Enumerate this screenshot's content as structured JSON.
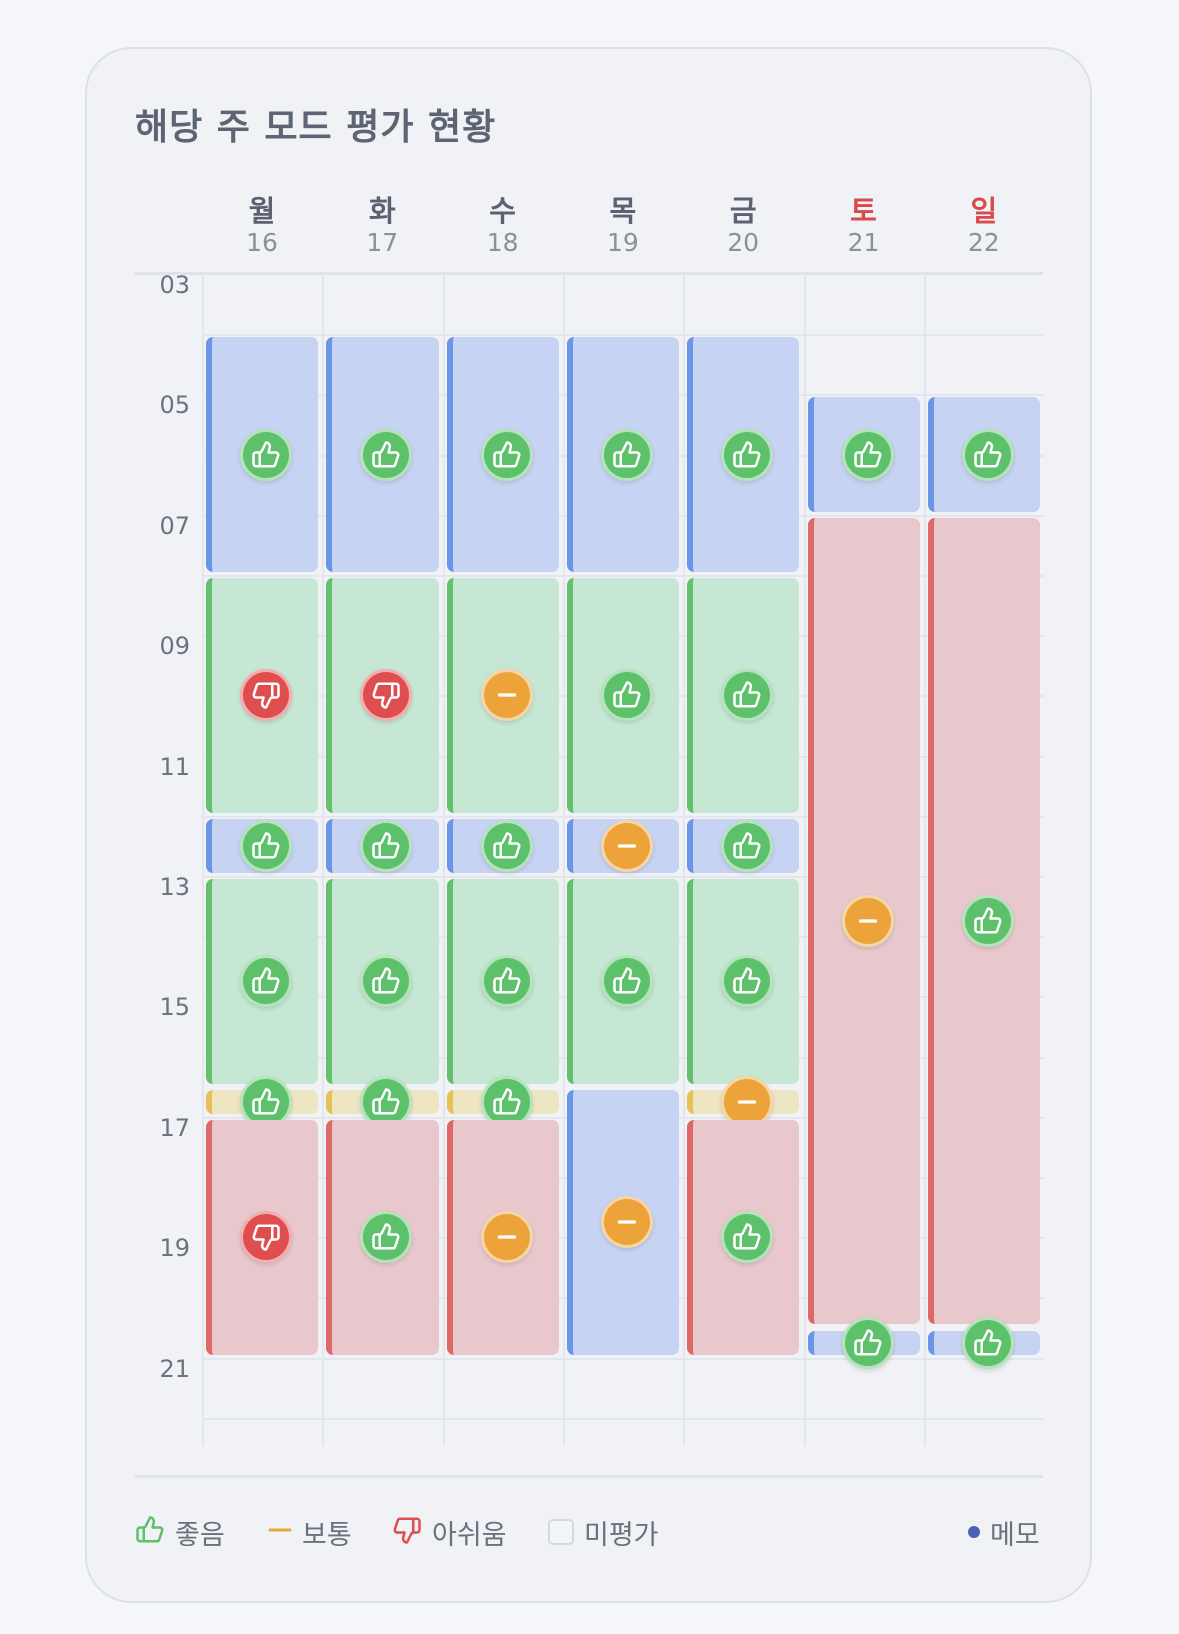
{
  "title": "해당 주 모드 평가 현황",
  "days": [
    {
      "name": "월",
      "date": "16",
      "weekend": false
    },
    {
      "name": "화",
      "date": "17",
      "weekend": false
    },
    {
      "name": "수",
      "date": "18",
      "weekend": false
    },
    {
      "name": "목",
      "date": "19",
      "weekend": false
    },
    {
      "name": "금",
      "date": "20",
      "weekend": false
    },
    {
      "name": "토",
      "date": "21",
      "weekend": true
    },
    {
      "name": "일",
      "date": "22",
      "weekend": true
    }
  ],
  "hours": [
    "03",
    "05",
    "07",
    "09",
    "11",
    "13",
    "15",
    "17",
    "19",
    "21"
  ],
  "hour_range": [
    3,
    22.5
  ],
  "colors": {
    "blue": "#c6d3f2",
    "green": "#c5e7d3",
    "red": "#e8c8cd",
    "yellow": "#eee5c3",
    "good": "#5cc16a",
    "neutral": "#eca43a",
    "bad": "#df4e4e"
  },
  "entries": [
    {
      "day": 0,
      "start": 4,
      "end": 8,
      "mode": "blue",
      "rating": "good"
    },
    {
      "day": 0,
      "start": 8,
      "end": 12,
      "mode": "green",
      "rating": "bad"
    },
    {
      "day": 0,
      "start": 12,
      "end": 13,
      "mode": "blue",
      "rating": "good"
    },
    {
      "day": 0,
      "start": 13,
      "end": 16.5,
      "mode": "green",
      "rating": "good"
    },
    {
      "day": 0,
      "start": 16.5,
      "end": 17,
      "mode": "yellow",
      "rating": "good"
    },
    {
      "day": 0,
      "start": 17,
      "end": 21,
      "mode": "red",
      "rating": "bad"
    },
    {
      "day": 1,
      "start": 4,
      "end": 8,
      "mode": "blue",
      "rating": "good"
    },
    {
      "day": 1,
      "start": 8,
      "end": 12,
      "mode": "green",
      "rating": "bad"
    },
    {
      "day": 1,
      "start": 12,
      "end": 13,
      "mode": "blue",
      "rating": "good"
    },
    {
      "day": 1,
      "start": 13,
      "end": 16.5,
      "mode": "green",
      "rating": "good"
    },
    {
      "day": 1,
      "start": 16.5,
      "end": 17,
      "mode": "yellow",
      "rating": "good"
    },
    {
      "day": 1,
      "start": 17,
      "end": 21,
      "mode": "red",
      "rating": "good"
    },
    {
      "day": 2,
      "start": 4,
      "end": 8,
      "mode": "blue",
      "rating": "good"
    },
    {
      "day": 2,
      "start": 8,
      "end": 12,
      "mode": "green",
      "rating": "neutral"
    },
    {
      "day": 2,
      "start": 12,
      "end": 13,
      "mode": "blue",
      "rating": "good"
    },
    {
      "day": 2,
      "start": 13,
      "end": 16.5,
      "mode": "green",
      "rating": "good"
    },
    {
      "day": 2,
      "start": 16.5,
      "end": 17,
      "mode": "yellow",
      "rating": "good"
    },
    {
      "day": 2,
      "start": 17,
      "end": 21,
      "mode": "red",
      "rating": "neutral"
    },
    {
      "day": 3,
      "start": 4,
      "end": 8,
      "mode": "blue",
      "rating": "good"
    },
    {
      "day": 3,
      "start": 8,
      "end": 12,
      "mode": "green",
      "rating": "good"
    },
    {
      "day": 3,
      "start": 12,
      "end": 13,
      "mode": "blue",
      "rating": "neutral"
    },
    {
      "day": 3,
      "start": 13,
      "end": 16.5,
      "mode": "green",
      "rating": "good"
    },
    {
      "day": 3,
      "start": 16.5,
      "end": 21,
      "mode": "blue",
      "rating": "neutral"
    },
    {
      "day": 4,
      "start": 4,
      "end": 8,
      "mode": "blue",
      "rating": "good"
    },
    {
      "day": 4,
      "start": 8,
      "end": 12,
      "mode": "green",
      "rating": "good"
    },
    {
      "day": 4,
      "start": 12,
      "end": 13,
      "mode": "blue",
      "rating": "good"
    },
    {
      "day": 4,
      "start": 13,
      "end": 16.5,
      "mode": "green",
      "rating": "good"
    },
    {
      "day": 4,
      "start": 16.5,
      "end": 17,
      "mode": "yellow",
      "rating": "neutral"
    },
    {
      "day": 4,
      "start": 17,
      "end": 21,
      "mode": "red",
      "rating": "good"
    },
    {
      "day": 5,
      "start": 5,
      "end": 7,
      "mode": "blue",
      "rating": "good"
    },
    {
      "day": 5,
      "start": 7,
      "end": 20.5,
      "mode": "red",
      "rating": "neutral"
    },
    {
      "day": 5,
      "start": 20.5,
      "end": 21,
      "mode": "blue",
      "rating": "good"
    },
    {
      "day": 6,
      "start": 5,
      "end": 7,
      "mode": "blue",
      "rating": "good"
    },
    {
      "day": 6,
      "start": 7,
      "end": 20.5,
      "mode": "red",
      "rating": "good"
    },
    {
      "day": 6,
      "start": 20.5,
      "end": 21,
      "mode": "blue",
      "rating": "good"
    }
  ],
  "legend": {
    "good": "좋음",
    "neutral": "보통",
    "bad": "아쉬움",
    "unrated": "미평가",
    "memo": "메모"
  }
}
